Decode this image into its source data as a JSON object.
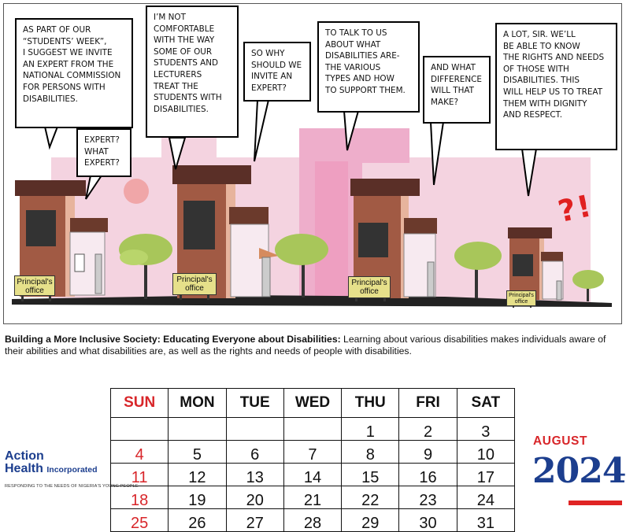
{
  "comic": {
    "bubbles": {
      "b1": "As part of our\n“students’ week”,\nI suggest we invite\nan expert from the\nnational commission\nfor persons with\ndisabilities.",
      "b2": "Expert?\nwhat\nexpert?",
      "b3": "I’m not\ncomfortable\nwith the way\nsome of our\nstudents and\nlecturers\ntreat the\nstudents with\ndisabilities.",
      "b4": "So why\nshould we\ninvite an\nexpert?",
      "b5": "To talk to us\nabout what\ndisabilities are-\nthe various\ntypes and how\nto support them.",
      "b6": "And what\ndifference\nwill that\nmake?",
      "b7": "A lot, sir. We’ll\nbe able to know\nthe rights and needs\nof those with\ndisabilities. This\nwill help us to treat\nthem with dignity\nand respect."
    },
    "sign_text": "Principal's\noffice",
    "exclamation": "?!"
  },
  "caption": {
    "bold": "Building a More Inclusive Society: Educating Everyone about Disabilities:",
    "text": " Learning about various disabilities makes individuals aware of their abilities and what disabilities are, as well as the rights and needs of people with disabilities."
  },
  "calendar": {
    "days": [
      "SUN",
      "MON",
      "TUE",
      "WED",
      "THU",
      "FRI",
      "SAT"
    ],
    "weeks": [
      [
        "",
        "",
        "",
        "",
        "1",
        "2",
        "3"
      ],
      [
        "4",
        "5",
        "6",
        "7",
        "8",
        "9",
        "10"
      ],
      [
        "11",
        "12",
        "13",
        "14",
        "15",
        "16",
        "17"
      ],
      [
        "18",
        "19",
        "20",
        "21",
        "22",
        "23",
        "24"
      ],
      [
        "25",
        "26",
        "27",
        "28",
        "29",
        "30",
        "31"
      ]
    ]
  },
  "branding": {
    "line1": "Action",
    "line2": "Health",
    "line2_small": "Incorporated",
    "tagline": "RESPONDING TO THE NEEDS OF NIGERIA'S YOUNG PEOPLE"
  },
  "month": "AUGUST",
  "year": "2024",
  "colors": {
    "accent_red": "#d8262a",
    "brand_blue": "#1c3e8e",
    "pink_bg": "#f4d3e0"
  }
}
